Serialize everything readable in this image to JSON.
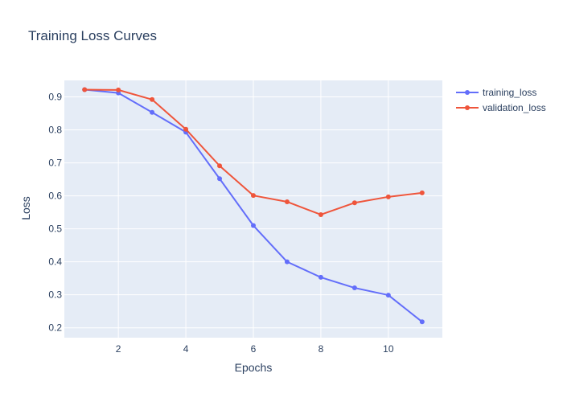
{
  "chart_data": {
    "type": "line",
    "title": "Training Loss Curves",
    "xlabel": "Epochs",
    "ylabel": "Loss",
    "x": [
      1,
      2,
      3,
      4,
      5,
      6,
      7,
      8,
      9,
      10,
      11
    ],
    "xlim": [
      0.4,
      11.6
    ],
    "ylim": [
      0.17,
      0.95
    ],
    "xticks": [
      2,
      4,
      6,
      8,
      10
    ],
    "yticks": [
      0.2,
      0.3,
      0.4,
      0.5,
      0.6,
      0.7,
      0.8,
      0.9
    ],
    "grid": true,
    "legend_position": "top-right",
    "series": [
      {
        "name": "training_loss",
        "color": "#636efa",
        "values": [
          0.922,
          0.912,
          0.853,
          0.793,
          0.652,
          0.51,
          0.4,
          0.353,
          0.321,
          0.299,
          0.218
        ]
      },
      {
        "name": "validation_loss",
        "color": "#ef553b",
        "values": [
          0.922,
          0.921,
          0.892,
          0.802,
          0.691,
          0.601,
          0.582,
          0.543,
          0.579,
          0.597,
          0.609
        ]
      }
    ],
    "plot_background": "#e5ecf6",
    "grid_color": "#ffffff"
  }
}
